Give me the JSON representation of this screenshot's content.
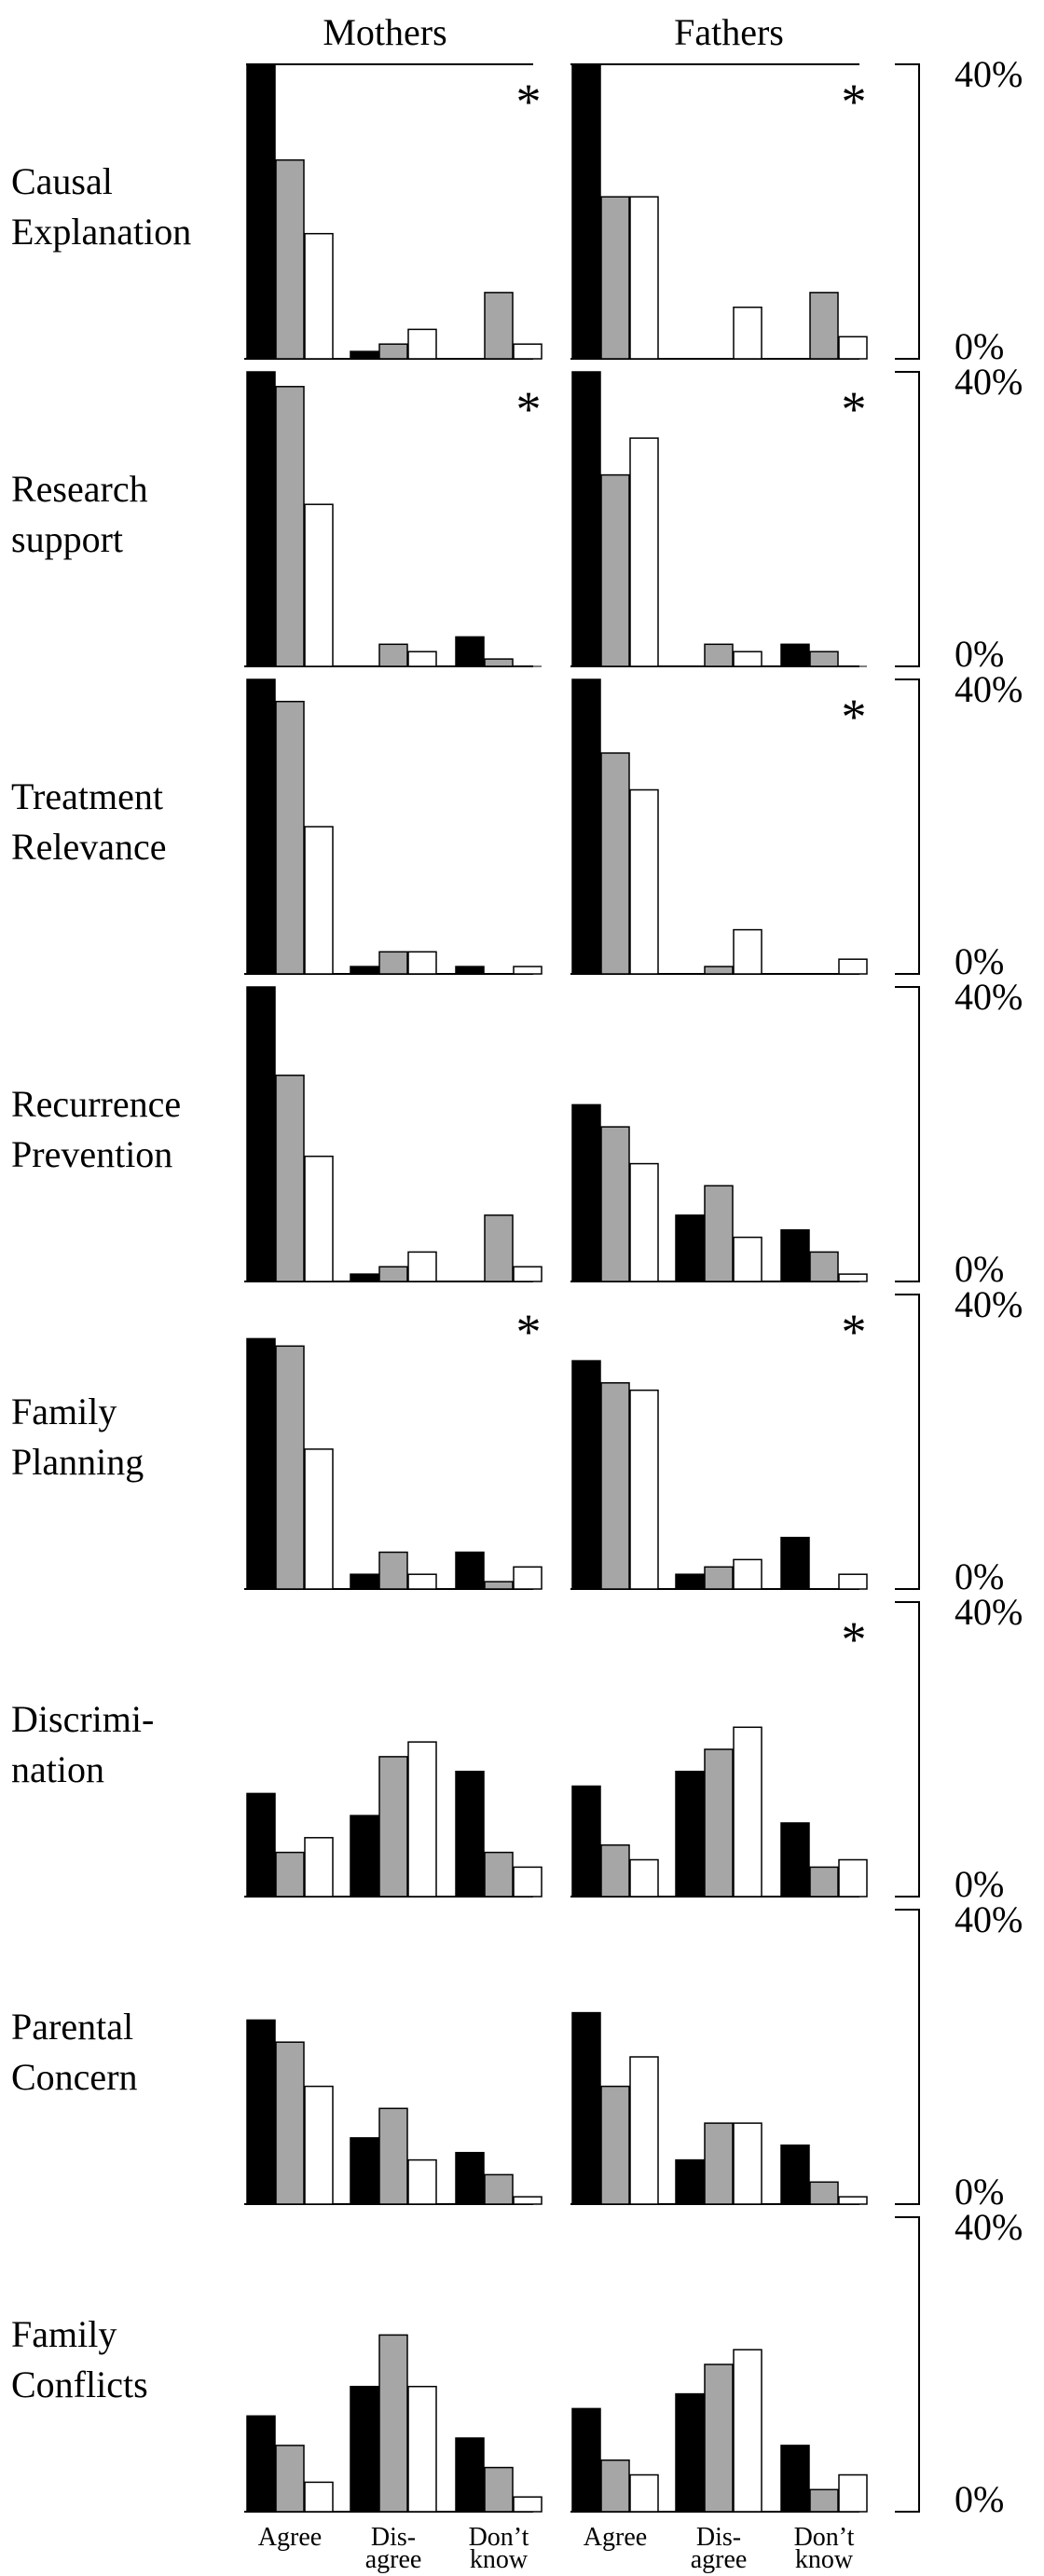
{
  "chart_data": {
    "type": "bar",
    "title": "",
    "columns": [
      "Mothers",
      "Fathers"
    ],
    "categories": [
      "Agree",
      "Dis-\nagree",
      "Don’t\nknow"
    ],
    "ylim": [
      0,
      40
    ],
    "ytick_labels": [
      "40%",
      "0%"
    ],
    "series_colors": [
      "#000000",
      "#a6a6a6",
      "#ffffff"
    ],
    "significance_marker": "*",
    "panels": [
      {
        "label": "Causal\nExplanation",
        "mothers": {
          "values": [
            [
              40,
              1,
              0
            ],
            [
              27,
              2,
              9
            ],
            [
              17,
              4,
              2
            ]
          ],
          "significant": true
        },
        "fathers": {
          "values": [
            [
              40,
              0,
              0
            ],
            [
              22,
              0,
              9
            ],
            [
              22,
              7,
              3
            ]
          ],
          "significant": true
        }
      },
      {
        "label": "Research\nsupport",
        "mothers": {
          "values": [
            [
              40,
              0,
              4
            ],
            [
              38,
              3,
              1
            ],
            [
              22,
              2,
              0
            ]
          ],
          "significant": true
        },
        "fathers": {
          "values": [
            [
              40,
              0,
              3
            ],
            [
              26,
              3,
              2
            ],
            [
              31,
              2,
              0
            ]
          ],
          "significant": true
        }
      },
      {
        "label": "Treatment\nRelevance",
        "mothers": {
          "values": [
            [
              40,
              1,
              1
            ],
            [
              37,
              3,
              0
            ],
            [
              20,
              3,
              1
            ]
          ],
          "significant": false
        },
        "fathers": {
          "values": [
            [
              40,
              0,
              0
            ],
            [
              30,
              1,
              0
            ],
            [
              25,
              6,
              2
            ]
          ],
          "significant": true
        }
      },
      {
        "label": "Recurrence\nPrevention",
        "mothers": {
          "values": [
            [
              40,
              1,
              0
            ],
            [
              28,
              2,
              9
            ],
            [
              17,
              4,
              2
            ]
          ],
          "significant": false
        },
        "fathers": {
          "values": [
            [
              24,
              9,
              7
            ],
            [
              21,
              13,
              4
            ],
            [
              16,
              6,
              1
            ]
          ],
          "significant": false
        }
      },
      {
        "label": "Family\nPlanning",
        "mothers": {
          "values": [
            [
              34,
              2,
              5
            ],
            [
              33,
              5,
              1
            ],
            [
              19,
              2,
              3
            ]
          ],
          "significant": true
        },
        "fathers": {
          "values": [
            [
              31,
              2,
              7
            ],
            [
              28,
              3,
              0
            ],
            [
              27,
              4,
              2
            ]
          ],
          "significant": true
        }
      },
      {
        "label": "Discrimi-\nnation",
        "mothers": {
          "values": [
            [
              14,
              11,
              17
            ],
            [
              6,
              19,
              6
            ],
            [
              8,
              21,
              4
            ]
          ],
          "significant": false
        },
        "fathers": {
          "values": [
            [
              15,
              17,
              10
            ],
            [
              7,
              20,
              4
            ],
            [
              5,
              23,
              5
            ]
          ],
          "significant": true
        }
      },
      {
        "label": "Parental\nConcern",
        "mothers": {
          "values": [
            [
              25,
              9,
              7
            ],
            [
              22,
              13,
              4
            ],
            [
              16,
              6,
              1
            ]
          ],
          "significant": false
        },
        "fathers": {
          "values": [
            [
              26,
              6,
              8
            ],
            [
              16,
              11,
              3
            ],
            [
              20,
              11,
              1
            ]
          ],
          "significant": false
        }
      },
      {
        "label": "Family\nConflicts",
        "mothers": {
          "values": [
            [
              13,
              17,
              10
            ],
            [
              9,
              24,
              6
            ],
            [
              4,
              17,
              2
            ]
          ],
          "significant": false
        },
        "fathers": {
          "values": [
            [
              14,
              16,
              9
            ],
            [
              7,
              20,
              3
            ],
            [
              5,
              22,
              5
            ]
          ],
          "significant": false
        }
      }
    ]
  }
}
